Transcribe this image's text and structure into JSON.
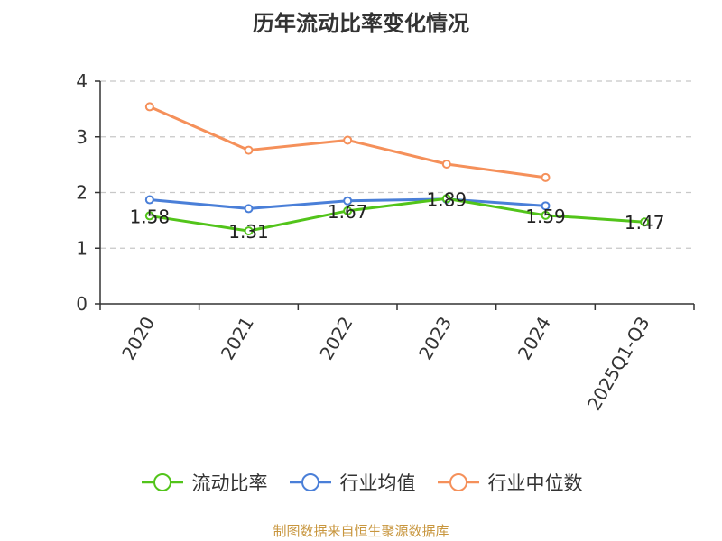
{
  "chart_data": {
    "type": "line",
    "title": "历年流动比率变化情况",
    "categories": [
      "2020",
      "2021",
      "2022",
      "2023",
      "2024",
      "2025Q1-Q3"
    ],
    "ylim": [
      0,
      4
    ],
    "yticks": [
      0,
      1,
      2,
      3,
      4
    ],
    "grid": true,
    "legend_position": "bottom",
    "series": [
      {
        "name": "流动比率",
        "color": "#52c41a",
        "values": [
          1.58,
          1.31,
          1.67,
          1.89,
          1.59,
          1.47
        ],
        "show_labels": true
      },
      {
        "name": "行业均值",
        "color": "#4a7fd8",
        "values": [
          1.87,
          1.71,
          1.85,
          1.88,
          1.76,
          null
        ],
        "show_labels": false
      },
      {
        "name": "行业中位数",
        "color": "#f5905a",
        "values": [
          3.54,
          2.76,
          2.94,
          2.51,
          2.27,
          null
        ],
        "show_labels": false
      }
    ]
  },
  "source_note": "制图数据来自恒生聚源数据库"
}
